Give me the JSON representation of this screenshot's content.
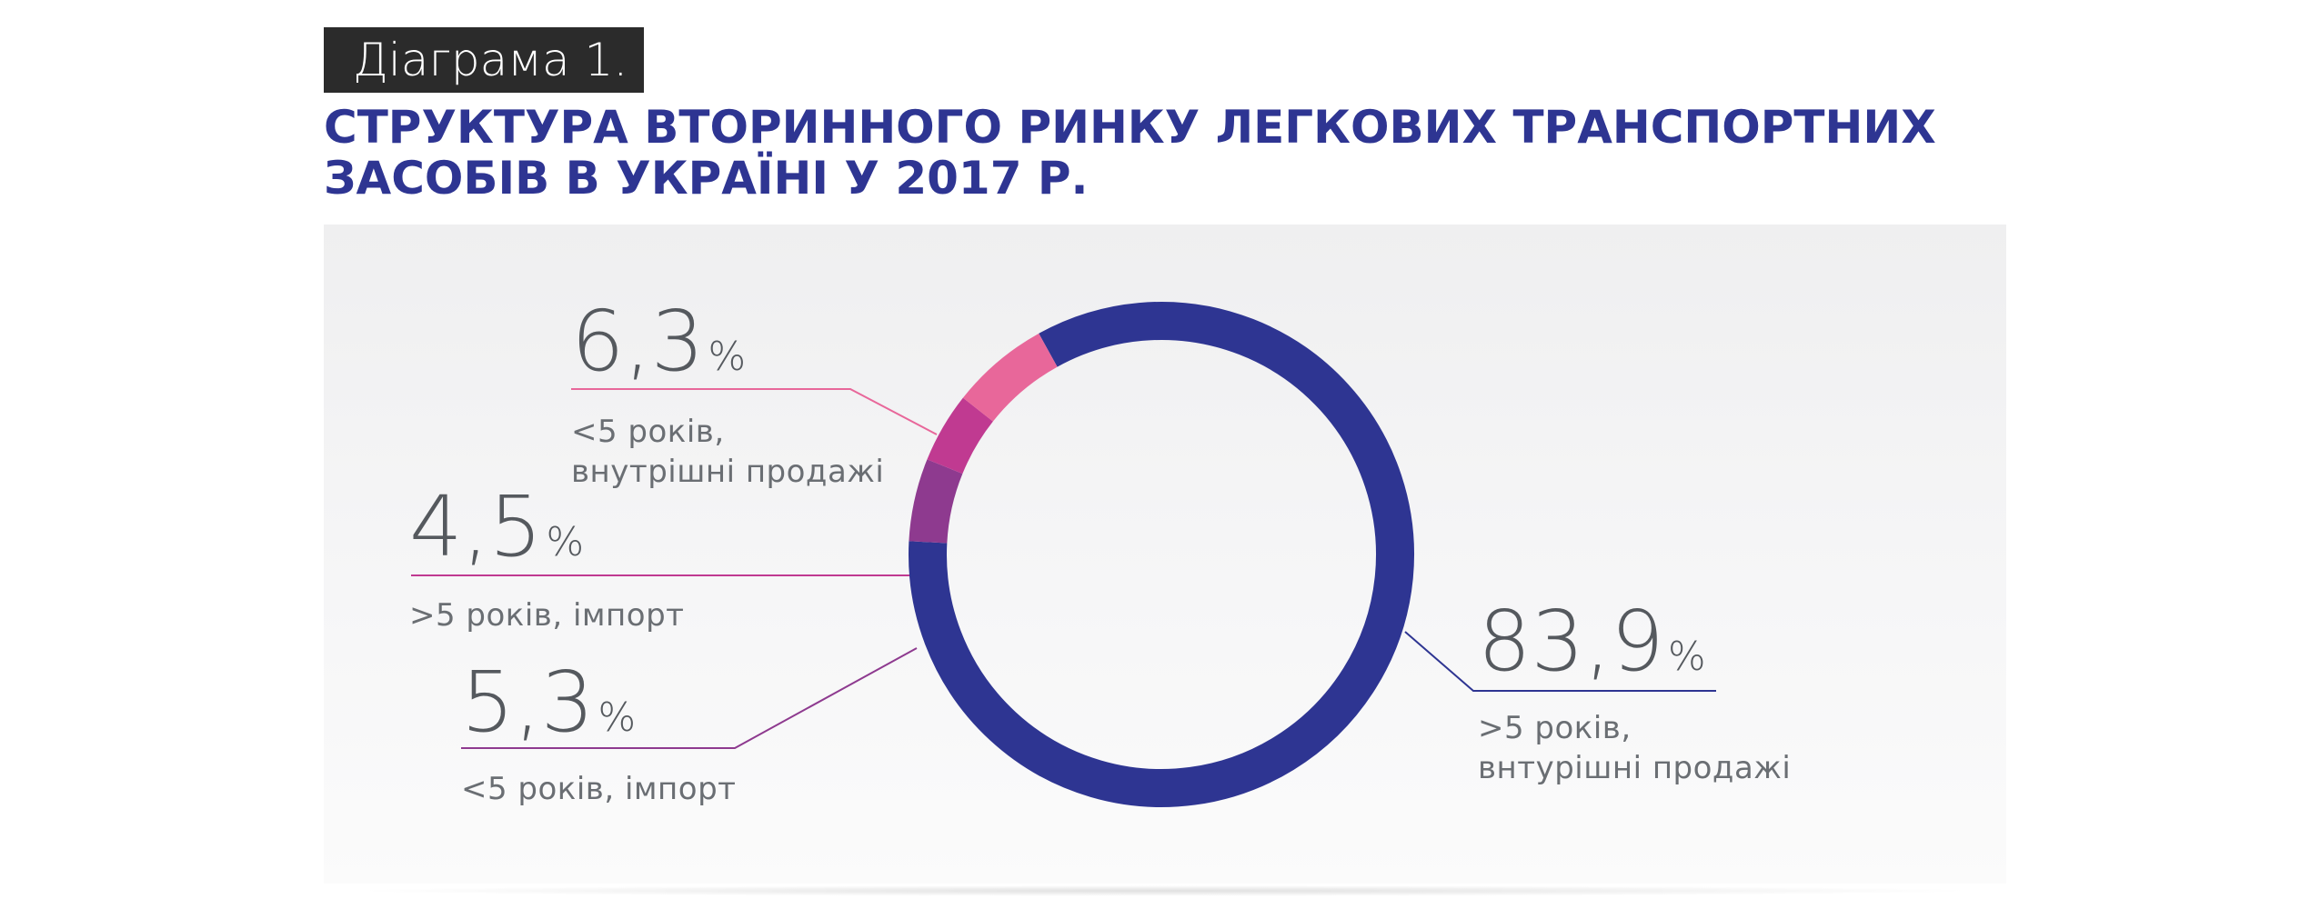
{
  "header": {
    "tag": "Діаграма 1.",
    "title": "СТРУКТУРА ВТОРИННОГО РИНКУ ЛЕГКОВИХ ТРАНСПОРТНИХ\nЗАСОБІВ В УКРАЇНІ У 2017 Р."
  },
  "chart_data": {
    "type": "pie",
    "variant": "donut",
    "title": "СТРУКТУРА ВТОРИННОГО РИНКУ ЛЕГКОВИХ ТРАНСПОРТНИХ ЗАСОБІВ В УКРАЇНІ У 2017 Р.",
    "unit": "%",
    "slices": [
      {
        "label": ">5 років,\nвнтурішні продажі",
        "value": 83.9,
        "display": "83,9",
        "color": "#2e3592"
      },
      {
        "label": "<5 років,\nвнутрішні продажі",
        "value": 6.3,
        "display": "6,3",
        "color": "#e8679a"
      },
      {
        "label": ">5 років, імпорт",
        "value": 4.5,
        "display": "4,5",
        "color": "#c03a91"
      },
      {
        "label": "<5 років, імпорт",
        "value": 5.3,
        "display": "5,3",
        "color": "#8e3a8f"
      }
    ]
  }
}
